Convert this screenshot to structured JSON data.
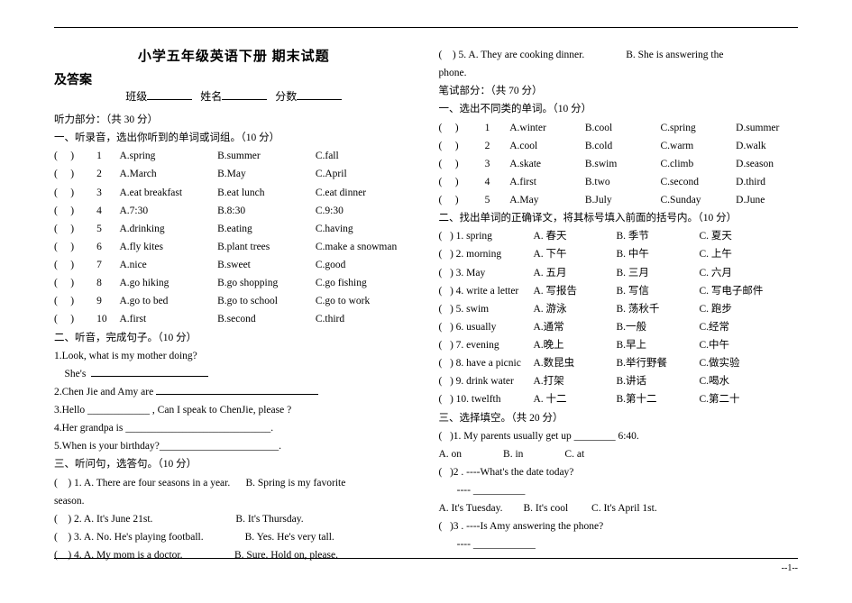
{
  "title": "小学五年级英语下册 期末试题",
  "answerkey_label": "及答案",
  "info": {
    "class": "班级",
    "name": "姓名",
    "score": "分数"
  },
  "left": {
    "listening_header": "听力部分：（共 30 分）",
    "sec1_header": "一、听录音，选出你听到的单词或词组。（10 分）",
    "sec1_rows": [
      {
        "n": "1",
        "a": "A.spring",
        "b": "B.summer",
        "c": "C.fall"
      },
      {
        "n": "2",
        "a": "A.March",
        "b": "B.May",
        "c": "C.April"
      },
      {
        "n": "3",
        "a": "A.eat breakfast",
        "b": "B.eat lunch",
        "c": "C.eat dinner"
      },
      {
        "n": "4",
        "a": "A.7:30",
        "b": "B.8:30",
        "c": "C.9:30"
      },
      {
        "n": "5",
        "a": "A.drinking",
        "b": "B.eating",
        "c": "C.having"
      },
      {
        "n": "6",
        "a": "A.fly kites",
        "b": "B.plant trees",
        "c": "C.make a snowman"
      },
      {
        "n": "7",
        "a": "A.nice",
        "b": "B.sweet",
        "c": "C.good"
      },
      {
        "n": "8",
        "a": "A.go hiking",
        "b": "B.go shopping",
        "c": "C.go fishing"
      },
      {
        "n": "9",
        "a": "A.go to bed",
        "b": "B.go to school",
        "c": "C.go to work"
      },
      {
        "n": "10",
        "a": "A.first",
        "b": "B.second",
        "c": "C.third"
      }
    ],
    "sec2_header": "二、听音，完成句子。（10 分）",
    "sec2_lines": [
      "1.Look, what is my mother doing?",
      "    She's  ",
      "2.Chen Jie and Amy are",
      "3.Hello ____________ , Can I speak to ChenJie, please ?",
      "4.Her grandpa is ____________________________.",
      "5.When is your birthday?_______________________."
    ],
    "sec3_header": "三、听问句，选答句。（10 分）",
    "sec3_lines": [
      "(    ) 1. A. There are four seasons in a year.      B. Spring is my favorite",
      "season.",
      "(    ) 2. A. It's June 21st.                                B. It's Thursday.",
      "(    ) 3. A. No. He's playing football.                B. Yes. He's very tall.",
      "(    ) 4. A. My mom is a doctor.                    B. Sure. Hold on, please."
    ]
  },
  "right": {
    "overflow_lines": [
      "(    ) 5. A. They are cooking dinner.                B. She is answering the",
      "phone."
    ],
    "written_header": "笔试部分：（共 70 分）",
    "sec1_header": "一、选出不同类的单词。（10 分）",
    "sec1_rows": [
      {
        "n": "1",
        "a": "A.winter",
        "b": "B.cool",
        "c": "C.spring",
        "d": "D.summer"
      },
      {
        "n": "2",
        "a": "A.cool",
        "b": "B.cold",
        "c": "C.warm",
        "d": "D.walk"
      },
      {
        "n": "3",
        "a": "A.skate",
        "b": "B.swim",
        "c": "C.climb",
        "d": "D.season"
      },
      {
        "n": "4",
        "a": "A.first",
        "b": "B.two",
        "c": "C.second",
        "d": "D.third"
      },
      {
        "n": "5",
        "a": "A.May",
        "b": "B.July",
        "c": "C.Sunday",
        "d": "D.June"
      }
    ],
    "sec2_header": "二、找出单词的正确译文，将其标号填入前面的括号内。（10 分）",
    "sec2_rows": [
      {
        "lbl": "(   ) 1. spring",
        "a": "A.  春天",
        "b": "B. 季节",
        "c": "C. 夏天"
      },
      {
        "lbl": "(   ) 2. morning",
        "a": "A.  下午",
        "b": "B. 中午",
        "c": "C. 上午"
      },
      {
        "lbl": "(   ) 3. May",
        "a": "A. 五月",
        "b": "B. 三月",
        "c": "C. 六月"
      },
      {
        "lbl": "(   ) 4. write a letter",
        "a": "A. 写报告",
        "b": "B. 写信",
        "c": "C. 写电子邮件"
      },
      {
        "lbl": "(   ) 5. swim",
        "a": "A. 游泳",
        "b": "B. 荡秋千",
        "c": "C. 跑步"
      },
      {
        "lbl": "(   ) 6. usually",
        "a": "A.通常",
        "b": "B.一般",
        "c": "C.经常"
      },
      {
        "lbl": "(   ) 7. evening",
        "a": "A.晚上",
        "b": "B.早上",
        "c": "C.中午"
      },
      {
        "lbl": "(   ) 8. have a picnic",
        "a": "A.数昆虫",
        "b": "B.举行野餐",
        "c": "C.做实验"
      },
      {
        "lbl": "(   ) 9. drink water",
        "a": "A.打架",
        "b": "B.讲话",
        "c": "C.喝水"
      },
      {
        "lbl": "(   ) 10. twelfth",
        "a": "A. 十二",
        "b": "B.第十二",
        "c": "C.第二十"
      }
    ],
    "sec3_header": "三、选择填空。（共 20 分）",
    "sec3": {
      "q1": "(   )1. My parents usually get up ________ 6:40.",
      "q1_opts": "A. on                B. in                C. at",
      "q2": "(   )2 . ----What's the date today?",
      "q2_blank": "       ---- __________",
      "q2_opts": "A. It's Tuesday.        B. It's cool         C. It's April 1st.",
      "q3": "(   )3 . ----Is Amy answering the phone?",
      "q3_blank": "       ---- ____________"
    }
  },
  "page_number": "--1--"
}
